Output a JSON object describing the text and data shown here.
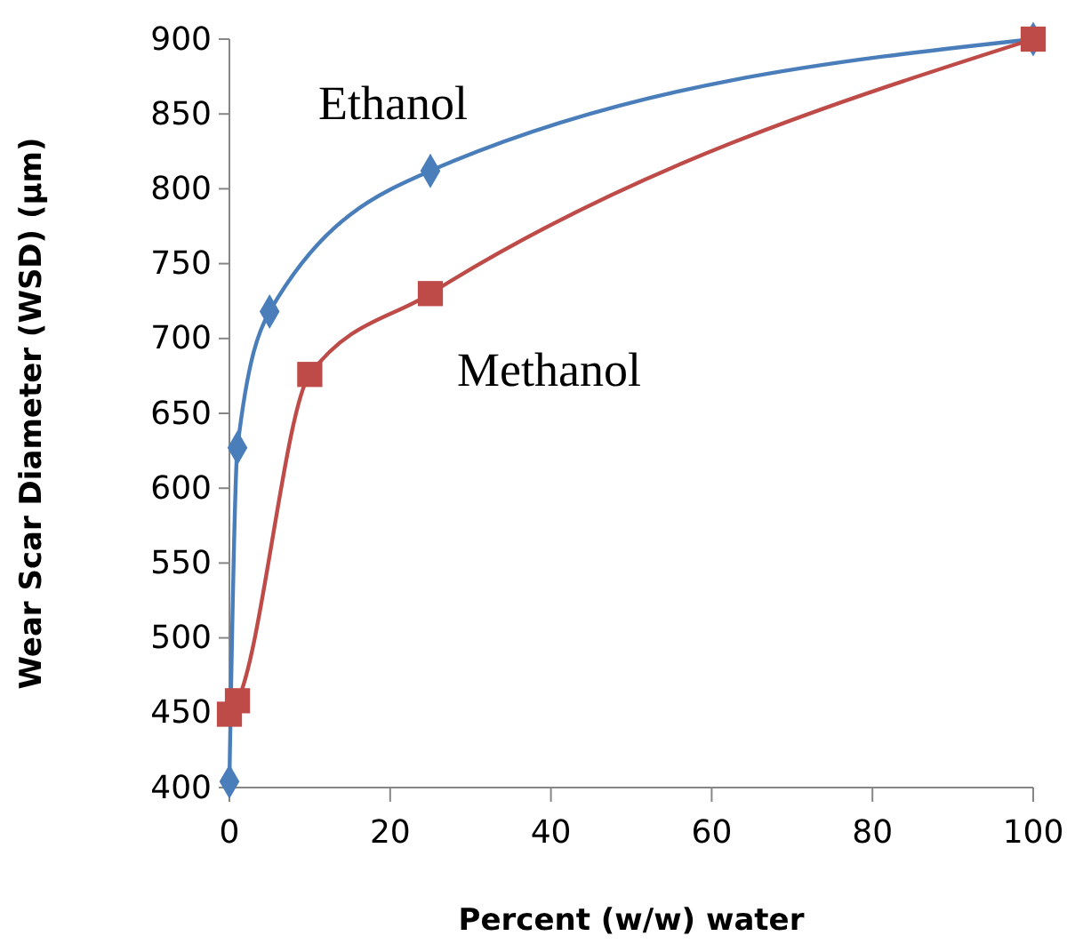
{
  "chart_data": {
    "type": "line",
    "xlabel": "Percent (w/w) water",
    "ylabel": "Wear Scar Diameter (WSD) (µm)",
    "xlim": [
      0,
      100
    ],
    "xticks": [
      0,
      20,
      40,
      60,
      80,
      100
    ],
    "ylim": [
      400,
      900
    ],
    "yticks": [
      400,
      450,
      500,
      550,
      600,
      650,
      700,
      750,
      800,
      850,
      900
    ],
    "grid": false,
    "legend": false,
    "series": [
      {
        "name": "Ethanol",
        "color": "#4a7ebb",
        "marker": "diamond",
        "x": [
          0,
          1,
          5,
          25,
          100
        ],
        "values": [
          404,
          627,
          718,
          812,
          900
        ]
      },
      {
        "name": "Methanol",
        "color": "#be4b48",
        "marker": "square",
        "x": [
          0,
          1,
          10,
          25,
          100
        ],
        "values": [
          449,
          458,
          676,
          730,
          900
        ]
      }
    ]
  }
}
